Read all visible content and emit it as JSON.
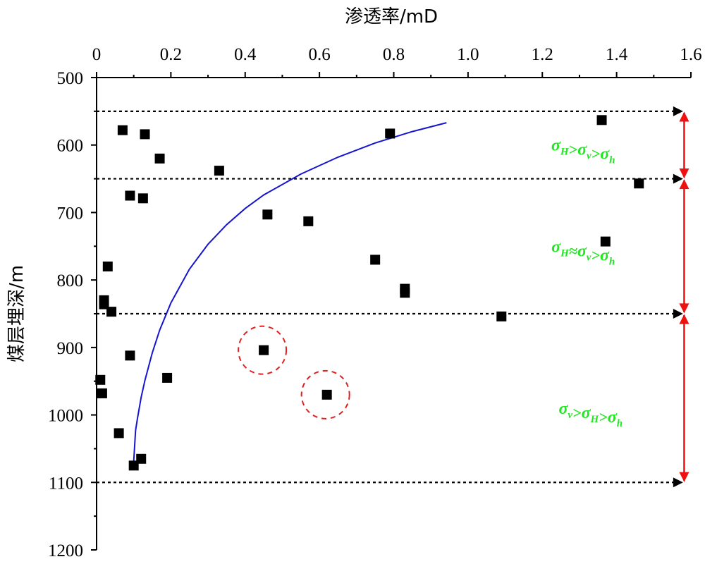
{
  "chart_data": {
    "type": "scatter",
    "xlabel": "渗透率/mD",
    "ylabel": "煤层埋深/m",
    "xlim": [
      0,
      1.6
    ],
    "ylim": [
      500,
      1200
    ],
    "y_inverted": true,
    "x_axis_position": "top",
    "xticks": [
      "0",
      "0.2",
      "0.4",
      "0.6",
      "0.8",
      "1.0",
      "1.2",
      "1.4",
      "1.6"
    ],
    "xtick_values": [
      0,
      0.2,
      0.4,
      0.6,
      0.8,
      1.0,
      1.2,
      1.4,
      1.6
    ],
    "yticks": [
      "500",
      "600",
      "700",
      "800",
      "900",
      "1000",
      "1100",
      "1200"
    ],
    "ytick_values": [
      500,
      600,
      700,
      800,
      900,
      1000,
      1100,
      1200
    ],
    "grid": false,
    "series": [
      {
        "type": "scatter",
        "marker": "square",
        "color": "#000000",
        "points": [
          {
            "x": 0.07,
            "y": 578
          },
          {
            "x": 0.13,
            "y": 584
          },
          {
            "x": 0.17,
            "y": 620
          },
          {
            "x": 0.33,
            "y": 638
          },
          {
            "x": 0.09,
            "y": 675
          },
          {
            "x": 0.125,
            "y": 679
          },
          {
            "x": 0.79,
            "y": 583
          },
          {
            "x": 1.36,
            "y": 563
          },
          {
            "x": 1.46,
            "y": 657
          },
          {
            "x": 0.46,
            "y": 703
          },
          {
            "x": 0.57,
            "y": 713
          },
          {
            "x": 1.37,
            "y": 743
          },
          {
            "x": 0.75,
            "y": 770
          },
          {
            "x": 0.83,
            "y": 813
          },
          {
            "x": 0.83,
            "y": 819
          },
          {
            "x": 1.09,
            "y": 854
          },
          {
            "x": 0.03,
            "y": 780
          },
          {
            "x": 0.02,
            "y": 830
          },
          {
            "x": 0.02,
            "y": 836
          },
          {
            "x": 0.04,
            "y": 847
          },
          {
            "x": 0.09,
            "y": 912
          },
          {
            "x": 0.19,
            "y": 945
          },
          {
            "x": 0.45,
            "y": 904
          },
          {
            "x": 0.62,
            "y": 970
          },
          {
            "x": 0.01,
            "y": 948
          },
          {
            "x": 0.015,
            "y": 968
          },
          {
            "x": 0.06,
            "y": 1027
          },
          {
            "x": 0.12,
            "y": 1065
          },
          {
            "x": 0.1,
            "y": 1075
          }
        ]
      },
      {
        "type": "line",
        "color": "#1515d0",
        "x": [
          0.942,
          0.85,
          0.75,
          0.65,
          0.55,
          0.45,
          0.4,
          0.35,
          0.3,
          0.25,
          0.2,
          0.17,
          0.15,
          0.13,
          0.12,
          0.11,
          0.105,
          0.1
        ],
        "y": [
          567,
          580,
          597,
          618,
          643,
          674,
          694,
          718,
          747,
          784,
          834,
          874,
          908,
          949,
          974,
          1005,
          1023,
          1068
        ]
      }
    ],
    "boundary_lines": {
      "depths": [
        550,
        650,
        850,
        1100
      ],
      "style": "dotted",
      "color": "#000000",
      "x_end": 1.58
    },
    "highlight_circles": [
      {
        "x": 0.45,
        "y": 904,
        "color": "#e02020",
        "style": "dashed"
      },
      {
        "x": 0.62,
        "y": 970,
        "color": "#e02020",
        "style": "dashed"
      }
    ],
    "range_arrows": {
      "color": "#ee1111",
      "ranges": [
        [
          550,
          650
        ],
        [
          650,
          850
        ],
        [
          850,
          1100
        ]
      ]
    },
    "regimes": [
      {
        "y": 600,
        "x": 1.31,
        "parts": [
          [
            "σ",
            "H"
          ],
          [
            ">",
            ""
          ],
          [
            "σ",
            "v"
          ],
          [
            ">",
            ""
          ],
          [
            "σ",
            "h"
          ]
        ]
      },
      {
        "y": 750,
        "x": 1.31,
        "parts": [
          [
            "σ",
            "H"
          ],
          [
            "≈",
            ""
          ],
          [
            "σ",
            "v"
          ],
          [
            ">",
            ""
          ],
          [
            "σ",
            "h"
          ]
        ]
      },
      {
        "y": 990,
        "x": 1.33,
        "parts": [
          [
            "σ",
            "v"
          ],
          [
            ">",
            ""
          ],
          [
            "σ",
            "H"
          ],
          [
            ">",
            ""
          ],
          [
            "σ",
            "h"
          ]
        ]
      }
    ]
  }
}
